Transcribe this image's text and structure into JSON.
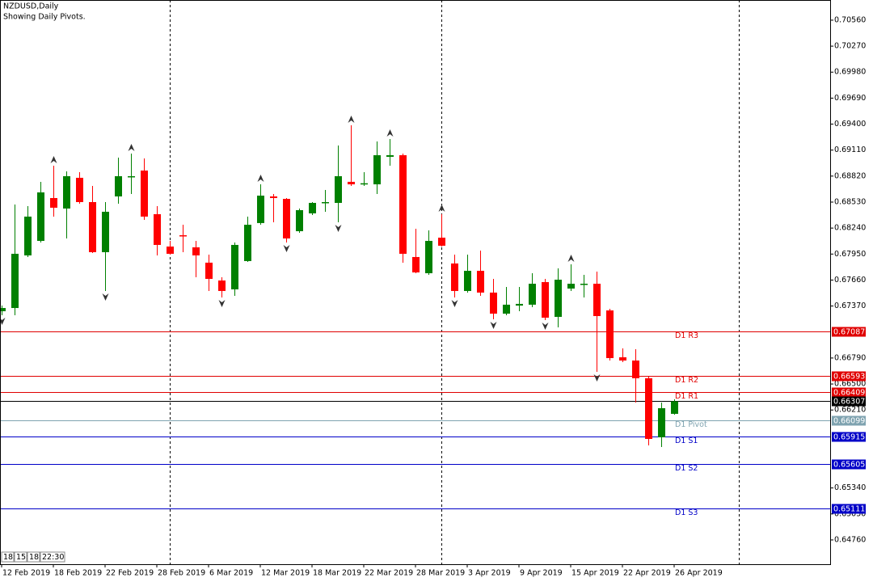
{
  "chart_data": {
    "type": "candlestick",
    "title": "NZDUSD,Daily",
    "subtitle": "Showing Daily Pivots.",
    "categories": [
      "12 Feb 2019",
      null,
      null,
      null,
      "18 Feb 2019",
      null,
      null,
      null,
      "22 Feb 2019",
      null,
      null,
      null,
      "28 Feb 2019",
      null,
      null,
      null,
      "6 Mar 2019",
      null,
      null,
      null,
      "12 Mar 2019",
      null,
      null,
      null,
      "18 Mar 2019",
      null,
      null,
      null,
      "22 Mar 2019",
      null,
      null,
      null,
      "28 Mar 2019",
      null,
      null,
      null,
      "3 Apr 2019",
      null,
      null,
      null,
      "9 Apr 2019",
      null,
      null,
      null,
      "15 Apr 2019",
      null,
      null,
      null,
      "22 Apr 2019",
      null,
      null,
      null,
      "26 Apr 2019"
    ],
    "open": [
      0.67312,
      0.67348,
      0.67935,
      0.68097,
      0.68575,
      0.68458,
      0.68801,
      0.6853,
      0.67971,
      0.68593,
      0.6881,
      0.68882,
      0.68395,
      0.68034,
      0.6816,
      0.68025,
      0.67854,
      0.67655,
      0.67556,
      0.67872,
      0.68296,
      0.68593,
      0.68566,
      0.68205,
      0.68404,
      0.68521,
      0.68521,
      0.68756,
      0.68738,
      0.68728,
      0.69035,
      0.69053,
      0.67917,
      0.67736,
      0.68133,
      0.67845,
      0.67538,
      0.67763,
      0.6752,
      0.67285,
      0.67375,
      0.67385,
      0.67637,
      0.67249,
      0.67565,
      0.6761,
      0.67619,
      0.67321,
      0.66798,
      0.66762,
      0.66564,
      0.65905,
      0.66167
    ],
    "high": [
      0.67375,
      0.68503,
      0.68485,
      0.68756,
      0.68936,
      0.68873,
      0.68864,
      0.6871,
      0.6853,
      0.69026,
      0.69071,
      0.69017,
      0.68485,
      0.68097,
      0.68277,
      0.68097,
      0.67944,
      0.67691,
      0.68079,
      0.68368,
      0.68728,
      0.6862,
      0.68575,
      0.68458,
      0.6853,
      0.68665,
      0.69161,
      0.69387,
      0.68864,
      0.69207,
      0.69234,
      0.69071,
      0.68232,
      0.68214,
      0.68395,
      0.67944,
      0.67944,
      0.67989,
      0.67673,
      0.67583,
      0.67583,
      0.67736,
      0.67673,
      0.6779,
      0.67835,
      0.67718,
      0.67754,
      0.67339,
      0.66897,
      0.66888,
      0.66582,
      0.66293,
      0.66329
    ],
    "low": [
      0.67267,
      0.67267,
      0.67917,
      0.68079,
      0.68368,
      0.68124,
      0.68512,
      0.67962,
      0.67538,
      0.68512,
      0.6862,
      0.68332,
      0.67935,
      0.67944,
      0.67971,
      0.67691,
      0.67538,
      0.67466,
      0.67484,
      0.67863,
      0.68277,
      0.68305,
      0.68079,
      0.68187,
      0.68386,
      0.68422,
      0.68305,
      0.6871,
      0.6871,
      0.6862,
      0.68936,
      0.67854,
      0.67736,
      0.67718,
      0.68034,
      0.67466,
      0.6752,
      0.67484,
      0.67222,
      0.67267,
      0.67312,
      0.67357,
      0.67213,
      0.67132,
      0.67538,
      0.67466,
      0.66636,
      0.66762,
      0.66744,
      0.66293,
      0.65815,
      0.65797,
      0.66158
    ],
    "close": [
      0.67348,
      0.67953,
      0.68368,
      0.68638,
      0.68467,
      0.68819,
      0.6853,
      0.67971,
      0.68422,
      0.68819,
      0.68819,
      0.68368,
      0.68052,
      0.67953,
      0.68151,
      0.67935,
      0.67673,
      0.67538,
      0.68052,
      0.68277,
      0.68602,
      0.68575,
      0.68124,
      0.6844,
      0.68521,
      0.6853,
      0.68819,
      0.68728,
      0.6874,
      0.69053,
      0.69053,
      0.67953,
      0.67745,
      0.68097,
      0.68043,
      0.67538,
      0.67763,
      0.6752,
      0.67285,
      0.67385,
      0.67394,
      0.67619,
      0.6724,
      0.67664,
      0.67619,
      0.67619,
      0.67258,
      0.66789,
      0.66762,
      0.66564,
      0.65887,
      0.6623,
      0.66307
    ],
    "up_color": "#008000",
    "down_color": "#ff0000",
    "fractal_up": [
      4,
      10,
      20,
      27,
      30,
      34,
      44
    ],
    "fractal_down": [
      0,
      8,
      17,
      22,
      26,
      35,
      38,
      42,
      46
    ],
    "ylim": [
      0.64489,
      0.70785
    ],
    "yticks": [
      {
        "value": 0.7056,
        "label": "0.70560"
      },
      {
        "value": 0.7027,
        "label": "0.70270"
      },
      {
        "value": 0.6998,
        "label": "0.69980"
      },
      {
        "value": 0.6969,
        "label": "0.69690"
      },
      {
        "value": 0.694,
        "label": "0.69400"
      },
      {
        "value": 0.6911,
        "label": "0.69110"
      },
      {
        "value": 0.6882,
        "label": "0.68820"
      },
      {
        "value": 0.6853,
        "label": "0.68530"
      },
      {
        "value": 0.6824,
        "label": "0.68240"
      },
      {
        "value": 0.6795,
        "label": "0.67950"
      },
      {
        "value": 0.6766,
        "label": "0.67660"
      },
      {
        "value": 0.6737,
        "label": "0.67370"
      },
      {
        "value": 0.6679,
        "label": "0.66790"
      },
      {
        "value": 0.665,
        "label": "0.66500"
      },
      {
        "value": 0.6621,
        "label": "0.66210"
      },
      {
        "value": 0.6534,
        "label": "0.65340"
      },
      {
        "value": 0.6505,
        "label": "0.65050"
      },
      {
        "value": 0.6476,
        "label": "0.64760"
      }
    ],
    "levels": [
      {
        "name": "D1 R3",
        "value": 0.67087,
        "color": "#e00000"
      },
      {
        "name": "D1 R2",
        "value": 0.66593,
        "color": "#e00000"
      },
      {
        "name": "D1 R1",
        "value": 0.66409,
        "color": "#e00000"
      },
      {
        "name": "D1 Pivot",
        "value": 0.66099,
        "color": "#7fa3b0"
      },
      {
        "name": "D1 S1",
        "value": 0.65915,
        "color": "#0000c8"
      },
      {
        "name": "D1 S2",
        "value": 0.65605,
        "color": "#0000c8"
      },
      {
        "name": "D1 S3",
        "value": 0.65111,
        "color": "#0000c8"
      }
    ],
    "last_price": 0.66307,
    "last_price_color": "#000000",
    "clock": [
      "18:",
      "15:",
      "18:",
      "22:30"
    ]
  }
}
